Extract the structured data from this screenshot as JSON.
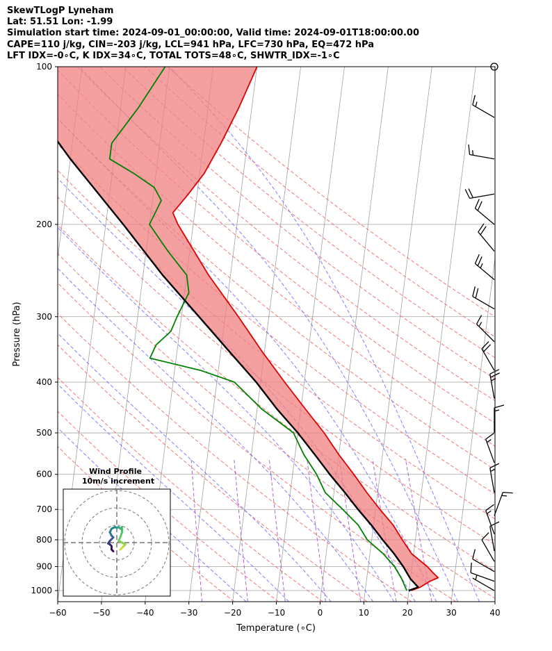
{
  "header": {
    "line1": "SkewTLogP Lyneham",
    "line2": "Lat: 51.51   Lon: -1.99",
    "line3": "Simulation start time: 2024-09-01_00:00:00, Valid time: 2024-09-01T18:00:00.00",
    "line4": "CAPE=110 j/kg, CIN=-203 j/kg, LCL=941 hPa, LFC=730 hPa, EQ=472 hPa",
    "line5": "LFT IDX=-0∘C, K IDX=34∘C, TOTAL TOTS=48∘C, SHWTR_IDX=-1∘C"
  },
  "chart_data": {
    "type": "line",
    "xlabel": "Temperature (∘C)",
    "ylabel": "Pressure (hPa)",
    "xlim": [
      -60,
      40
    ],
    "ylim": [
      1050,
      100
    ],
    "y_scale": "log",
    "skew": true,
    "grid": true,
    "xticks": [
      -60,
      -50,
      -40,
      -30,
      -20,
      -10,
      0,
      10,
      20,
      30,
      40
    ],
    "yticks": [
      1000,
      900,
      800,
      700,
      600,
      500,
      400,
      300,
      200,
      100
    ],
    "colors": {
      "temperature": "#e00000",
      "dewpoint": "#008000",
      "parcel": "#000000",
      "cape_fill": "#7aaad4",
      "cin_fill": "#f08080",
      "dry_adiabat": "#f06060",
      "moist_adiabat": "#6a6aff",
      "mixing_ratio": "#9b40c0",
      "isotherm": "#a0a0a0"
    },
    "series": [
      {
        "name": "temperature",
        "points": [
          [
            1000,
            20.5
          ],
          [
            985,
            22.5
          ],
          [
            960,
            24.5
          ],
          [
            945,
            26.3
          ],
          [
            925,
            25
          ],
          [
            900,
            23.5
          ],
          [
            850,
            19.5
          ],
          [
            800,
            17
          ],
          [
            750,
            14.5
          ],
          [
            700,
            11
          ],
          [
            650,
            7.5
          ],
          [
            600,
            4
          ],
          [
            550,
            0
          ],
          [
            500,
            -4
          ],
          [
            450,
            -9
          ],
          [
            400,
            -14.5
          ],
          [
            350,
            -20.5
          ],
          [
            300,
            -27
          ],
          [
            250,
            -35
          ],
          [
            200,
            -43.5
          ],
          [
            190,
            -45
          ],
          [
            175,
            -42
          ],
          [
            160,
            -39
          ],
          [
            140,
            -36
          ],
          [
            120,
            -33
          ],
          [
            100,
            -30
          ]
        ]
      },
      {
        "name": "dewpoint",
        "points": [
          [
            1000,
            19.5
          ],
          [
            950,
            18
          ],
          [
            900,
            16
          ],
          [
            850,
            13
          ],
          [
            800,
            9
          ],
          [
            750,
            6.5
          ],
          [
            700,
            2.5
          ],
          [
            650,
            -2
          ],
          [
            600,
            -4.5
          ],
          [
            550,
            -8
          ],
          [
            500,
            -11
          ],
          [
            450,
            -19
          ],
          [
            400,
            -26
          ],
          [
            380,
            -34
          ],
          [
            360,
            -46
          ],
          [
            340,
            -45
          ],
          [
            320,
            -42
          ],
          [
            300,
            -41
          ],
          [
            270,
            -39
          ],
          [
            250,
            -40
          ],
          [
            225,
            -45
          ],
          [
            200,
            -50
          ],
          [
            180,
            -48
          ],
          [
            170,
            -50
          ],
          [
            160,
            -55
          ],
          [
            150,
            -61
          ],
          [
            140,
            -61
          ],
          [
            120,
            -56
          ],
          [
            100,
            -51
          ]
        ]
      },
      {
        "name": "parcel",
        "points": [
          [
            1000,
            20
          ],
          [
            985,
            22
          ],
          [
            950,
            20
          ],
          [
            900,
            18
          ],
          [
            850,
            15.5
          ],
          [
            800,
            12.5
          ],
          [
            750,
            9.5
          ],
          [
            700,
            6
          ],
          [
            650,
            2.5
          ],
          [
            600,
            -1.5
          ],
          [
            550,
            -5.5
          ],
          [
            500,
            -10
          ],
          [
            450,
            -15.5
          ],
          [
            400,
            -21
          ],
          [
            350,
            -28
          ],
          [
            300,
            -36
          ],
          [
            250,
            -45.5
          ],
          [
            200,
            -56
          ],
          [
            150,
            -70
          ],
          [
            100,
            -88
          ]
        ]
      }
    ],
    "dry_adiabats_theta_K": [
      250,
      260,
      270,
      280,
      290,
      300,
      310,
      320,
      330,
      340,
      350,
      360,
      370,
      380,
      390,
      400,
      410,
      420,
      430
    ],
    "moist_adiabats_thetaw_C": [
      -20,
      -10,
      0,
      10,
      15,
      20,
      25,
      30,
      35
    ],
    "mixing_ratios_gkg": [
      0.4,
      1,
      2,
      4,
      7,
      12,
      20
    ],
    "wind_barbs": [
      {
        "p": 100,
        "spd_kt": 0,
        "dir": 0
      },
      {
        "p": 125,
        "spd_kt": 15,
        "dir": 300
      },
      {
        "p": 150,
        "spd_kt": 15,
        "dir": 280
      },
      {
        "p": 175,
        "spd_kt": 20,
        "dir": 260
      },
      {
        "p": 200,
        "spd_kt": 20,
        "dir": 310
      },
      {
        "p": 225,
        "spd_kt": 20,
        "dir": 320
      },
      {
        "p": 255,
        "spd_kt": 25,
        "dir": 310
      },
      {
        "p": 290,
        "spd_kt": 20,
        "dir": 300
      },
      {
        "p": 335,
        "spd_kt": 15,
        "dir": 315
      },
      {
        "p": 380,
        "spd_kt": 20,
        "dir": 330
      },
      {
        "p": 430,
        "spd_kt": 25,
        "dir": 350
      },
      {
        "p": 500,
        "spd_kt": 15,
        "dir": 0
      },
      {
        "p": 570,
        "spd_kt": 15,
        "dir": 340
      },
      {
        "p": 650,
        "spd_kt": 15,
        "dir": 350
      },
      {
        "p": 720,
        "spd_kt": 15,
        "dir": 20
      },
      {
        "p": 780,
        "spd_kt": 15,
        "dir": 340
      },
      {
        "p": 840,
        "spd_kt": 10,
        "dir": 350
      },
      {
        "p": 880,
        "spd_kt": 10,
        "dir": 330
      },
      {
        "p": 920,
        "spd_kt": 10,
        "dir": 300
      },
      {
        "p": 960,
        "spd_kt": 10,
        "dir": 290
      },
      {
        "p": 1000,
        "spd_kt": 5,
        "dir": 300
      }
    ],
    "hodograph": {
      "title": "Wind Profile",
      "subtitle": "10m/s increment",
      "rings_ms": [
        10,
        20,
        30
      ],
      "points": [
        [
          -2,
          -5
        ],
        [
          -3,
          -4
        ],
        [
          -3,
          -2
        ],
        [
          -4,
          -1
        ],
        [
          -5,
          -0.5
        ],
        [
          -4,
          1
        ],
        [
          -3,
          2
        ],
        [
          -2,
          3
        ],
        [
          -3,
          4
        ],
        [
          -4,
          6
        ],
        [
          -3,
          8
        ],
        [
          -1,
          9
        ],
        [
          0,
          8.5
        ],
        [
          1,
          9
        ],
        [
          2,
          8
        ],
        [
          3,
          9
        ],
        [
          3,
          6
        ],
        [
          2,
          3
        ],
        [
          1,
          1
        ],
        [
          3,
          0
        ],
        [
          5,
          -1
        ],
        [
          4,
          -2
        ],
        [
          3,
          -3
        ],
        [
          2,
          -4
        ]
      ]
    }
  }
}
